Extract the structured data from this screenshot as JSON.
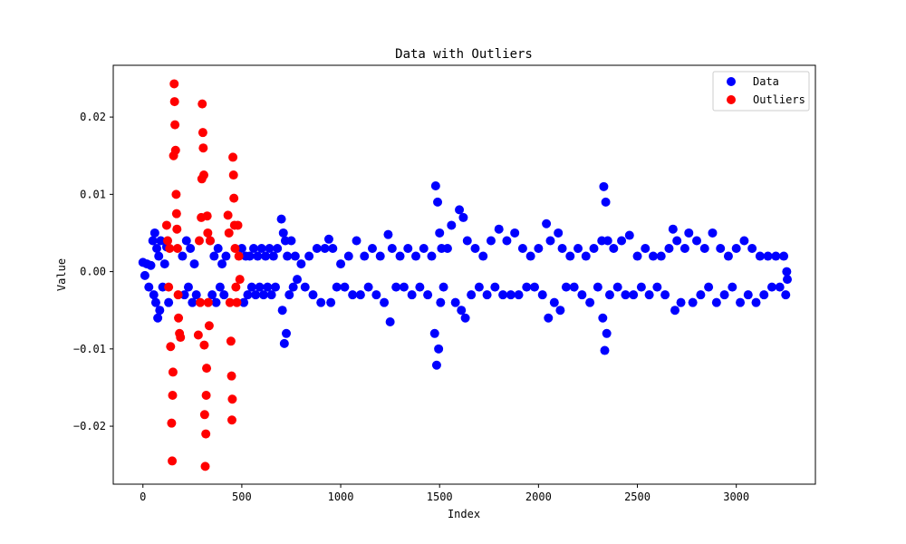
{
  "chart_data": {
    "type": "scatter",
    "title": "Data with Outliers",
    "xlabel": "Index",
    "ylabel": "Value",
    "xlim": [
      -150,
      3400
    ],
    "ylim": [
      -0.0275,
      0.0267
    ],
    "x_ticks": [
      0,
      500,
      1000,
      1500,
      2000,
      2500,
      3000
    ],
    "x_tick_labels": [
      "0",
      "500",
      "1000",
      "1500",
      "2000",
      "2500",
      "3000"
    ],
    "y_ticks": [
      -0.02,
      -0.01,
      0.0,
      0.01,
      0.02
    ],
    "y_tick_labels": [
      "−0.02",
      "−0.01",
      "0.00",
      "0.01",
      "0.02"
    ],
    "grid": false,
    "legend_position": "top-right",
    "series": [
      {
        "name": "Data",
        "color": "#0000ff",
        "points": [
          [
            0,
            0.0012
          ],
          [
            10,
            -0.0005
          ],
          [
            20,
            0.001
          ],
          [
            30,
            -0.002
          ],
          [
            40,
            0.0008
          ],
          [
            50,
            0.004
          ],
          [
            55,
            -0.003
          ],
          [
            60,
            0.005
          ],
          [
            65,
            -0.004
          ],
          [
            70,
            0.003
          ],
          [
            75,
            -0.006
          ],
          [
            80,
            0.002
          ],
          [
            85,
            -0.005
          ],
          [
            90,
            0.004
          ],
          [
            100,
            -0.002
          ],
          [
            110,
            0.001
          ],
          [
            120,
            0.0032
          ],
          [
            130,
            -0.004
          ],
          [
            200,
            0.002
          ],
          [
            210,
            -0.003
          ],
          [
            220,
            0.004
          ],
          [
            230,
            -0.002
          ],
          [
            240,
            0.003
          ],
          [
            250,
            -0.004
          ],
          [
            260,
            0.001
          ],
          [
            270,
            -0.003
          ],
          [
            340,
            0.004
          ],
          [
            350,
            -0.003
          ],
          [
            360,
            0.002
          ],
          [
            370,
            -0.004
          ],
          [
            380,
            0.003
          ],
          [
            390,
            -0.002
          ],
          [
            400,
            0.001
          ],
          [
            410,
            -0.003
          ],
          [
            420,
            0.002
          ],
          [
            500,
            0.003
          ],
          [
            510,
            -0.004
          ],
          [
            520,
            0.002
          ],
          [
            530,
            -0.003
          ],
          [
            540,
            0.002
          ],
          [
            550,
            -0.002
          ],
          [
            560,
            0.003
          ],
          [
            570,
            -0.003
          ],
          [
            580,
            0.002
          ],
          [
            590,
            -0.002
          ],
          [
            600,
            0.003
          ],
          [
            610,
            -0.003
          ],
          [
            620,
            0.002
          ],
          [
            630,
            -0.002
          ],
          [
            640,
            0.003
          ],
          [
            650,
            -0.003
          ],
          [
            660,
            0.002
          ],
          [
            670,
            -0.002
          ],
          [
            680,
            0.003
          ],
          [
            700,
            0.0068
          ],
          [
            705,
            -0.005
          ],
          [
            710,
            0.005
          ],
          [
            715,
            -0.0093
          ],
          [
            720,
            0.004
          ],
          [
            725,
            -0.008
          ],
          [
            730,
            0.002
          ],
          [
            740,
            -0.003
          ],
          [
            750,
            0.004
          ],
          [
            760,
            -0.002
          ],
          [
            770,
            0.002
          ],
          [
            780,
            -0.001
          ],
          [
            800,
            0.001
          ],
          [
            820,
            -0.002
          ],
          [
            840,
            0.002
          ],
          [
            860,
            -0.003
          ],
          [
            880,
            0.003
          ],
          [
            900,
            -0.004
          ],
          [
            920,
            0.003
          ],
          [
            940,
            0.0042
          ],
          [
            950,
            -0.004
          ],
          [
            960,
            0.003
          ],
          [
            980,
            -0.002
          ],
          [
            1000,
            0.001
          ],
          [
            1020,
            -0.002
          ],
          [
            1040,
            0.002
          ],
          [
            1060,
            -0.003
          ],
          [
            1080,
            0.004
          ],
          [
            1100,
            -0.003
          ],
          [
            1120,
            0.002
          ],
          [
            1140,
            -0.002
          ],
          [
            1160,
            0.003
          ],
          [
            1180,
            -0.003
          ],
          [
            1200,
            0.002
          ],
          [
            1220,
            -0.004
          ],
          [
            1240,
            0.0048
          ],
          [
            1250,
            -0.0065
          ],
          [
            1260,
            0.003
          ],
          [
            1280,
            -0.002
          ],
          [
            1300,
            0.002
          ],
          [
            1320,
            -0.002
          ],
          [
            1340,
            0.003
          ],
          [
            1360,
            -0.003
          ],
          [
            1380,
            0.002
          ],
          [
            1400,
            -0.002
          ],
          [
            1420,
            0.003
          ],
          [
            1440,
            -0.003
          ],
          [
            1460,
            0.002
          ],
          [
            1475,
            -0.008
          ],
          [
            1480,
            0.0111
          ],
          [
            1485,
            -0.0121
          ],
          [
            1490,
            0.009
          ],
          [
            1495,
            -0.01
          ],
          [
            1500,
            0.005
          ],
          [
            1505,
            -0.004
          ],
          [
            1510,
            0.003
          ],
          [
            1520,
            -0.002
          ],
          [
            1540,
            0.003
          ],
          [
            1560,
            0.006
          ],
          [
            1580,
            -0.004
          ],
          [
            1600,
            0.008
          ],
          [
            1610,
            -0.005
          ],
          [
            1620,
            0.007
          ],
          [
            1630,
            -0.006
          ],
          [
            1640,
            0.004
          ],
          [
            1660,
            -0.003
          ],
          [
            1680,
            0.003
          ],
          [
            1700,
            -0.002
          ],
          [
            1720,
            0.002
          ],
          [
            1740,
            -0.003
          ],
          [
            1760,
            0.004
          ],
          [
            1780,
            -0.002
          ],
          [
            1800,
            0.0055
          ],
          [
            1820,
            -0.003
          ],
          [
            1840,
            0.004
          ],
          [
            1860,
            -0.003
          ],
          [
            1880,
            0.005
          ],
          [
            1900,
            -0.003
          ],
          [
            1920,
            0.003
          ],
          [
            1940,
            -0.002
          ],
          [
            1960,
            0.002
          ],
          [
            1980,
            -0.002
          ],
          [
            2000,
            0.003
          ],
          [
            2020,
            -0.003
          ],
          [
            2040,
            0.0062
          ],
          [
            2050,
            -0.006
          ],
          [
            2060,
            0.004
          ],
          [
            2080,
            -0.004
          ],
          [
            2100,
            0.005
          ],
          [
            2110,
            -0.005
          ],
          [
            2120,
            0.003
          ],
          [
            2140,
            -0.002
          ],
          [
            2160,
            0.002
          ],
          [
            2180,
            -0.002
          ],
          [
            2200,
            0.003
          ],
          [
            2220,
            -0.003
          ],
          [
            2240,
            0.002
          ],
          [
            2260,
            -0.004
          ],
          [
            2280,
            0.003
          ],
          [
            2300,
            -0.002
          ],
          [
            2320,
            0.004
          ],
          [
            2325,
            -0.006
          ],
          [
            2330,
            0.011
          ],
          [
            2335,
            -0.0102
          ],
          [
            2340,
            0.009
          ],
          [
            2345,
            -0.008
          ],
          [
            2350,
            0.004
          ],
          [
            2360,
            -0.003
          ],
          [
            2380,
            0.003
          ],
          [
            2400,
            -0.002
          ],
          [
            2420,
            0.004
          ],
          [
            2440,
            -0.003
          ],
          [
            2460,
            0.0047
          ],
          [
            2480,
            -0.003
          ],
          [
            2500,
            0.002
          ],
          [
            2520,
            -0.002
          ],
          [
            2540,
            0.003
          ],
          [
            2560,
            -0.003
          ],
          [
            2580,
            0.002
          ],
          [
            2600,
            -0.002
          ],
          [
            2620,
            0.002
          ],
          [
            2640,
            -0.003
          ],
          [
            2660,
            0.003
          ],
          [
            2680,
            0.0055
          ],
          [
            2690,
            -0.005
          ],
          [
            2700,
            0.004
          ],
          [
            2720,
            -0.004
          ],
          [
            2740,
            0.003
          ],
          [
            2760,
            0.005
          ],
          [
            2780,
            -0.004
          ],
          [
            2800,
            0.004
          ],
          [
            2820,
            -0.003
          ],
          [
            2840,
            0.003
          ],
          [
            2860,
            -0.002
          ],
          [
            2880,
            0.005
          ],
          [
            2900,
            -0.004
          ],
          [
            2920,
            0.003
          ],
          [
            2940,
            -0.003
          ],
          [
            2960,
            0.002
          ],
          [
            2980,
            -0.002
          ],
          [
            3000,
            0.003
          ],
          [
            3020,
            -0.004
          ],
          [
            3040,
            0.004
          ],
          [
            3060,
            -0.003
          ],
          [
            3080,
            0.003
          ],
          [
            3100,
            -0.004
          ],
          [
            3120,
            0.002
          ],
          [
            3140,
            -0.003
          ],
          [
            3160,
            0.002
          ],
          [
            3180,
            -0.002
          ],
          [
            3200,
            0.002
          ],
          [
            3220,
            -0.002
          ],
          [
            3240,
            0.002
          ],
          [
            3250,
            -0.003
          ],
          [
            3255,
            0.0
          ],
          [
            3258,
            -0.001
          ]
        ]
      },
      {
        "name": "Outliers",
        "color": "#ff0000",
        "points": [
          [
            120,
            0.006
          ],
          [
            125,
            0.004
          ],
          [
            130,
            -0.002
          ],
          [
            135,
            0.003
          ],
          [
            140,
            -0.0097
          ],
          [
            145,
            -0.0196
          ],
          [
            148,
            -0.0245
          ],
          [
            150,
            -0.016
          ],
          [
            152,
            -0.013
          ],
          [
            155,
            0.015
          ],
          [
            158,
            0.0243
          ],
          [
            160,
            0.022
          ],
          [
            162,
            0.019
          ],
          [
            165,
            0.0157
          ],
          [
            168,
            0.01
          ],
          [
            170,
            0.0075
          ],
          [
            172,
            0.0055
          ],
          [
            175,
            0.003
          ],
          [
            178,
            -0.003
          ],
          [
            180,
            -0.006
          ],
          [
            185,
            -0.008
          ],
          [
            190,
            -0.0085
          ],
          [
            280,
            -0.0082
          ],
          [
            285,
            0.004
          ],
          [
            290,
            -0.004
          ],
          [
            295,
            0.007
          ],
          [
            298,
            0.012
          ],
          [
            300,
            0.0217
          ],
          [
            303,
            0.018
          ],
          [
            305,
            0.016
          ],
          [
            308,
            0.0125
          ],
          [
            310,
            -0.0095
          ],
          [
            312,
            -0.0185
          ],
          [
            315,
            -0.0252
          ],
          [
            318,
            -0.021
          ],
          [
            320,
            -0.016
          ],
          [
            322,
            -0.0125
          ],
          [
            325,
            0.0072
          ],
          [
            328,
            0.005
          ],
          [
            330,
            -0.004
          ],
          [
            335,
            -0.007
          ],
          [
            340,
            0.004
          ],
          [
            430,
            0.0073
          ],
          [
            435,
            0.005
          ],
          [
            440,
            -0.004
          ],
          [
            445,
            -0.009
          ],
          [
            448,
            -0.0135
          ],
          [
            450,
            -0.0192
          ],
          [
            452,
            -0.0165
          ],
          [
            455,
            0.0148
          ],
          [
            458,
            0.0125
          ],
          [
            460,
            0.0095
          ],
          [
            463,
            0.006
          ],
          [
            466,
            0.003
          ],
          [
            470,
            -0.002
          ],
          [
            475,
            -0.004
          ],
          [
            480,
            0.006
          ],
          [
            485,
            0.002
          ],
          [
            490,
            -0.001
          ]
        ]
      }
    ]
  }
}
